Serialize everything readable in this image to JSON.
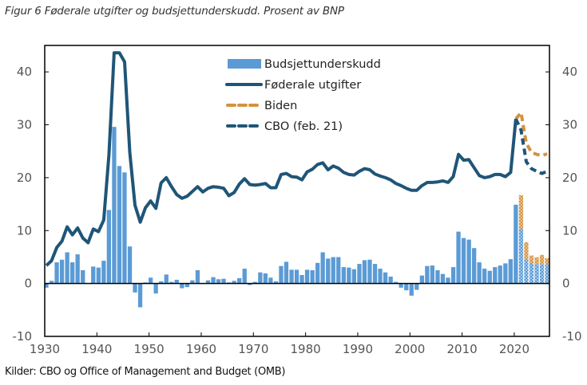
{
  "title": "Figur 6 Føderale utgifter og budsjettunderskudd. Prosent av BNP",
  "source": "Kilder: CBO og Office of Management and Budget (OMB)",
  "colors": {
    "bars": "#5b9bd5",
    "spending_line": "#1f5577",
    "biden": "#d4923f",
    "cbo": "#1f5577",
    "axis": "#000000"
  },
  "chart_data": {
    "type": "bar+line",
    "title": "Figur 6 Føderale utgifter og budsjettunderskudd. Prosent av BNP",
    "xlabel": "",
    "ylabel": "",
    "xlim": [
      1930,
      2026
    ],
    "ylim": [
      -10,
      45
    ],
    "grid": false,
    "legend_position": "top-center",
    "x_ticks": [
      1930,
      1940,
      1950,
      1960,
      1970,
      1980,
      1990,
      2000,
      2010,
      2020
    ],
    "y_ticks_left": [
      -10,
      0,
      10,
      20,
      30,
      40
    ],
    "y_ticks_right": [
      -10,
      0,
      10,
      20,
      30,
      40
    ],
    "legend": [
      {
        "label": "Budsjettunderskudd",
        "kind": "bar"
      },
      {
        "label": "Føderale utgifter",
        "kind": "line"
      },
      {
        "label": "Biden",
        "kind": "dashed"
      },
      {
        "label": "CBO (feb. 21)",
        "kind": "dashed"
      }
    ],
    "deficit": {
      "name": "Budsjettunderskudd",
      "start_year": 1930,
      "values": [
        -0.8,
        0.5,
        4.0,
        4.5,
        5.9,
        4.0,
        5.5,
        2.5,
        0.1,
        3.2,
        3.0,
        4.3,
        13.9,
        29.6,
        22.2,
        21.0,
        7.0,
        -1.7,
        -4.5,
        0.2,
        1.1,
        -1.9,
        0.4,
        1.7,
        0.3,
        0.7,
        -0.9,
        -0.7,
        0.6,
        2.5,
        -0.1,
        0.6,
        1.2,
        0.8,
        0.9,
        0.2,
        0.5,
        1.0,
        2.8,
        -0.3,
        0.3,
        2.1,
        1.9,
        1.1,
        0.4,
        3.3,
        4.1,
        2.6,
        2.6,
        1.6,
        2.6,
        2.5,
        3.9,
        5.9,
        4.7,
        5.0,
        5.0,
        3.1,
        3.0,
        2.7,
        3.7,
        4.4,
        4.5,
        3.7,
        2.8,
        2.1,
        1.3,
        0.3,
        -0.8,
        -1.3,
        -2.3,
        -1.2,
        1.5,
        3.3,
        3.4,
        2.5,
        1.8,
        1.1,
        3.1,
        9.8,
        8.6,
        8.3,
        6.7,
        4.0,
        2.8,
        2.4,
        3.1,
        3.4,
        3.8,
        4.6,
        14.9
      ]
    },
    "deficit_projection": {
      "years": [
        2021,
        2022,
        2023,
        2024,
        2025,
        2026
      ],
      "cbo": [
        10.3,
        4.6,
        3.8,
        3.6,
        3.6,
        3.6
      ],
      "biden": [
        16.7,
        7.8,
        5.3,
        5.0,
        5.4,
        4.8
      ]
    },
    "spending": {
      "name": "Føderale utgifter",
      "start_year": 1930,
      "values": [
        3.4,
        4.3,
        6.8,
        8.0,
        10.7,
        9.2,
        10.5,
        8.6,
        7.7,
        10.3,
        9.8,
        12.0,
        24.3,
        43.6,
        43.6,
        41.9,
        24.8,
        14.8,
        11.6,
        14.3,
        15.6,
        14.2,
        19.0,
        20.0,
        18.3,
        16.8,
        16.1,
        16.5,
        17.4,
        18.3,
        17.3,
        18.0,
        18.3,
        18.2,
        18.0,
        16.6,
        17.2,
        18.8,
        19.8,
        18.7,
        18.6,
        18.7,
        18.9,
        18.1,
        18.1,
        20.6,
        20.8,
        20.2,
        20.1,
        19.6,
        21.1,
        21.6,
        22.5,
        22.8,
        21.5,
        22.2,
        21.8,
        21.0,
        20.6,
        20.5,
        21.2,
        21.7,
        21.5,
        20.7,
        20.3,
        20.0,
        19.6,
        18.9,
        18.5,
        18.0,
        17.6,
        17.6,
        18.5,
        19.1,
        19.1,
        19.2,
        19.4,
        19.1,
        20.2,
        24.4,
        23.3,
        23.4,
        21.9,
        20.4,
        20.0,
        20.2,
        20.6,
        20.6,
        20.2,
        21.0,
        31.1
      ]
    },
    "biden_spending": {
      "name": "Biden",
      "years": [
        2020,
        2021,
        2022,
        2023,
        2024,
        2025,
        2026
      ],
      "values": [
        31.1,
        32.3,
        26.5,
        24.8,
        24.4,
        24.2,
        24.5
      ]
    },
    "cbo_spending": {
      "name": "CBO (feb. 21)",
      "years": [
        2020,
        2021,
        2022,
        2023,
        2024,
        2025,
        2026
      ],
      "values": [
        31.1,
        29.0,
        23.0,
        21.7,
        21.2,
        20.8,
        21.2
      ]
    }
  }
}
